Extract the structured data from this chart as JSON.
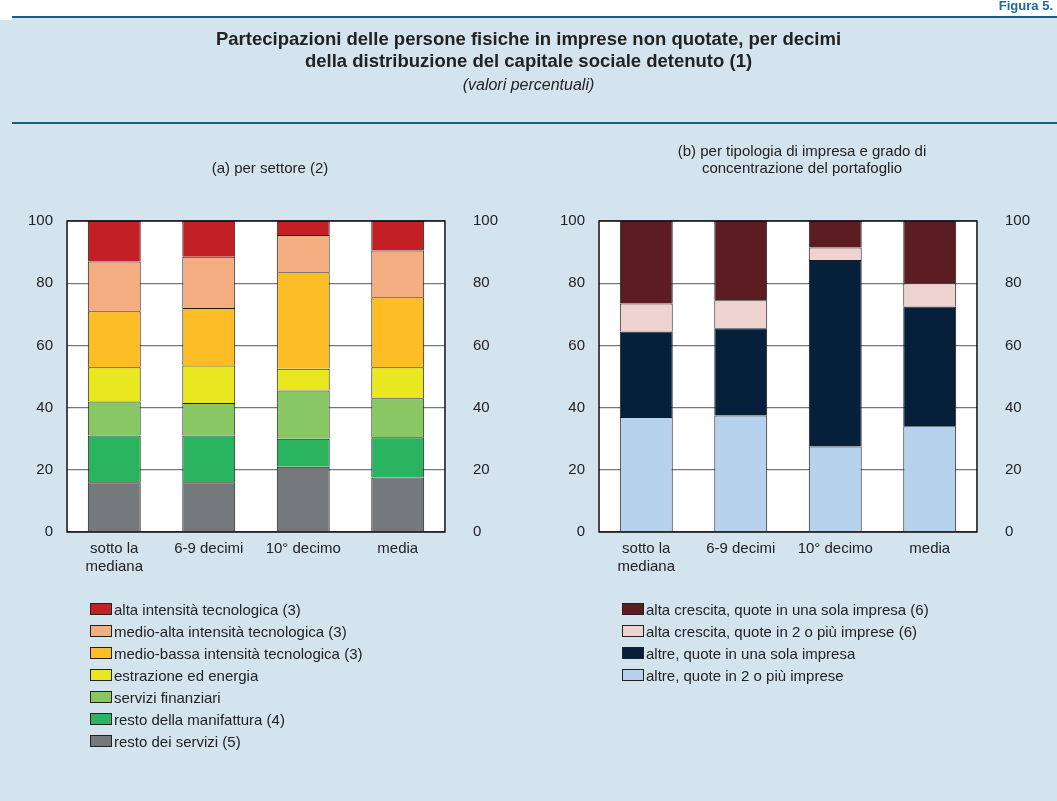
{
  "chart_data": [
    {
      "type": "other",
      "title": "Partecipazioni delle persone fisiche in imprese non quotate, per decimi della distribuzione del capitale sociale detenuto (1)",
      "subtitle": "(valori percentuali)",
      "annotations": [
        "Figura 5."
      ]
    },
    {
      "type": "bar",
      "title": "(a) per settore (2)",
      "categories": [
        "sotto la mediana",
        "6-9 decimi",
        "10° decimo",
        "media"
      ],
      "stacked": true,
      "ylim": [
        0,
        100
      ],
      "yticks": [
        0,
        20,
        40,
        60,
        80,
        100
      ],
      "y2lim": [
        0,
        100
      ],
      "y2ticks": [
        0,
        20,
        40,
        60,
        80,
        100
      ],
      "grid": "y",
      "legend": "bottom",
      "series": [
        {
          "name": "resto dei servizi (5)",
          "color": "#76797b",
          "values": [
            16,
            16,
            21,
            17.5
          ]
        },
        {
          "name": "resto della manifattura (4)",
          "color": "#2bb45f",
          "values": [
            15,
            15,
            9,
            13
          ]
        },
        {
          "name": "servizi finanziari",
          "color": "#88c764",
          "values": [
            11,
            10.5,
            15.5,
            12.5
          ]
        },
        {
          "name": "estrazione ed energia",
          "color": "#e9e71f",
          "values": [
            11,
            12,
            7,
            10
          ]
        },
        {
          "name": "medio-bassa intensità tecnologica (3)",
          "color": "#fdbd26",
          "values": [
            18,
            18.5,
            31,
            22.5
          ]
        },
        {
          "name": "medio-alta intensità tecnologica (3)",
          "color": "#f5ad82",
          "values": [
            16,
            16.5,
            12,
            15
          ]
        },
        {
          "name": "alta intensità tecnologica (3)",
          "color": "#c32026",
          "values": [
            13,
            11.5,
            4.5,
            9.5
          ]
        }
      ]
    },
    {
      "type": "bar",
      "title": "(b) per tipologia di impresa e grado di concentrazione del portafoglio",
      "categories": [
        "sotto la mediana",
        "6-9 decimi",
        "10° decimo",
        "media"
      ],
      "stacked": true,
      "ylim": [
        0,
        100
      ],
      "yticks": [
        0,
        20,
        40,
        60,
        80,
        100
      ],
      "y2lim": [
        0,
        100
      ],
      "y2ticks": [
        0,
        20,
        40,
        60,
        80,
        100
      ],
      "grid": "y",
      "legend": "bottom",
      "series": [
        {
          "name": "altre, quote in 2 o più imprese",
          "color": "#b7d2ec",
          "values": [
            37,
            37.5,
            27.5,
            34
          ]
        },
        {
          "name": "altre, quote in una sola impresa",
          "color": "#06203c",
          "values": [
            27.5,
            28,
            60,
            38.5
          ]
        },
        {
          "name": "alta crescita, quote in 2 o più imprese (6)",
          "color": "#efd3d1",
          "values": [
            9,
            9,
            4,
            7.5
          ]
        },
        {
          "name": "alta crescita, quote in una sola impresa (6)",
          "color": "#5c1d22",
          "values": [
            26.5,
            25.5,
            8.5,
            20
          ]
        }
      ]
    }
  ]
}
